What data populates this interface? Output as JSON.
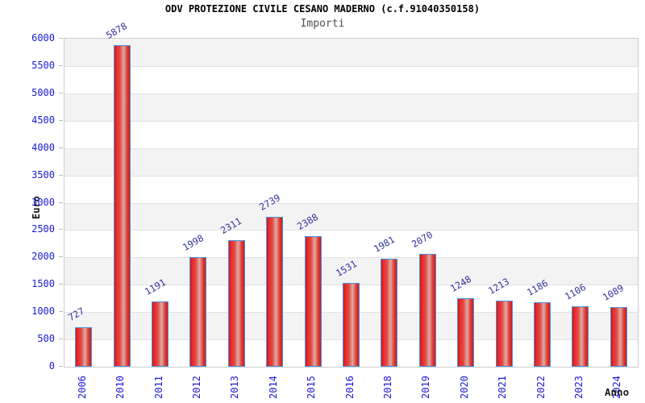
{
  "page": {
    "title": "ODV PROTEZIONE CIVILE CESANO MADERNO (c.f.91040350158)",
    "subtitle": "Importi"
  },
  "chart_data": {
    "type": "bar",
    "title": "ODV PROTEZIONE CIVILE CESANO MADERNO (c.f.91040350158)",
    "subtitle": "Importi",
    "xlabel": "Anno",
    "ylabel": "Euro",
    "categories": [
      "2006",
      "2010",
      "2011",
      "2012",
      "2013",
      "2014",
      "2015",
      "2016",
      "2018",
      "2019",
      "2020",
      "2021",
      "2022",
      "2023",
      "2024"
    ],
    "values": [
      727,
      5878,
      1191,
      1998,
      2311,
      2739,
      2388,
      1531,
      1981,
      2070,
      1248,
      1213,
      1186,
      1106,
      1089
    ],
    "ylim": [
      0,
      6000
    ],
    "ytick_step": 500,
    "yticks": [
      0,
      500,
      1000,
      1500,
      2000,
      2500,
      3000,
      3500,
      4000,
      4500,
      5000,
      5500,
      6000
    ],
    "grid": true,
    "legend": "none",
    "layout_hints": {
      "bands_alternating": true,
      "x_labels_rotation_deg": -90,
      "value_labels_rotation_deg": -30
    },
    "colors": {
      "bar_fill": "#e02a2a",
      "bar_highlight": "#ddaba5",
      "bar_border": "#4a90e2",
      "tick_label": "#1b1bd6",
      "value_label": "#32329b",
      "band_gray": "#f3f3f3",
      "band_white": "#ffffff",
      "gridline": "#e2e2e2",
      "plot_border": "#cccccc",
      "title_color": "#000000",
      "subtitle_color": "#4d4d4d"
    }
  }
}
